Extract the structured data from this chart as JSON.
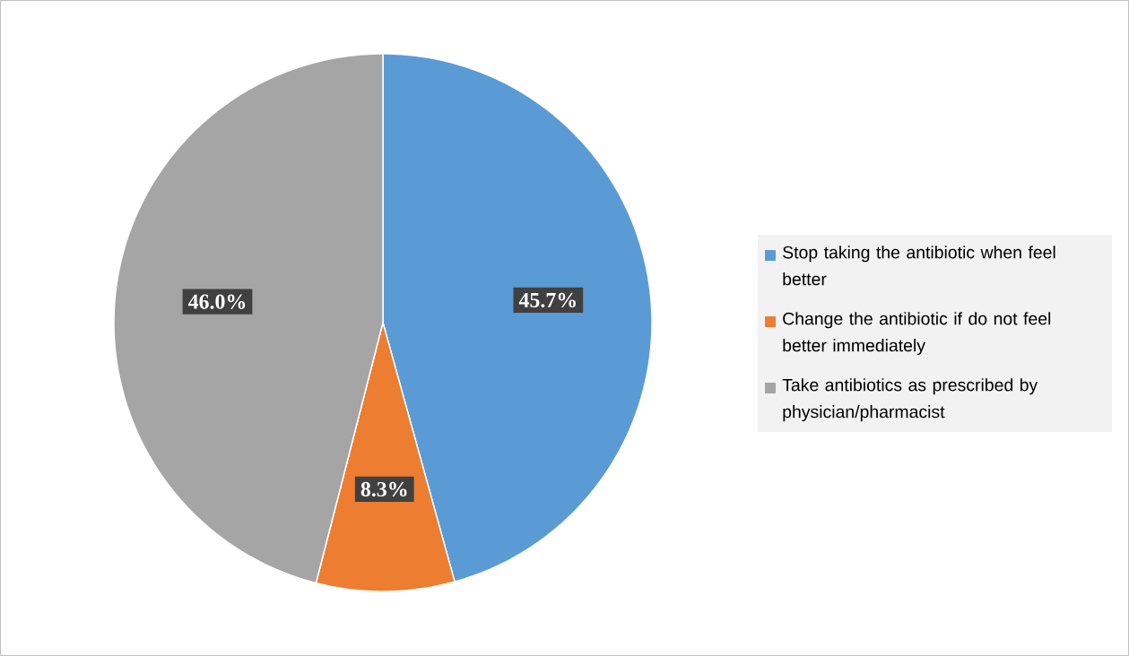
{
  "chart_data": {
    "type": "pie",
    "categories": [
      "Stop taking the antibiotic when feel better",
      "Change the antibiotic if do not feel better immediately",
      "Take antibiotics as prescribed by physician/pharmacist"
    ],
    "values": [
      45.7,
      8.3,
      46.0
    ],
    "colors": [
      "#5b9bd5",
      "#ed7d31",
      "#a5a5a5"
    ],
    "value_labels": [
      "45.7%",
      "8.3%",
      "46.0%"
    ],
    "legend": "right"
  }
}
